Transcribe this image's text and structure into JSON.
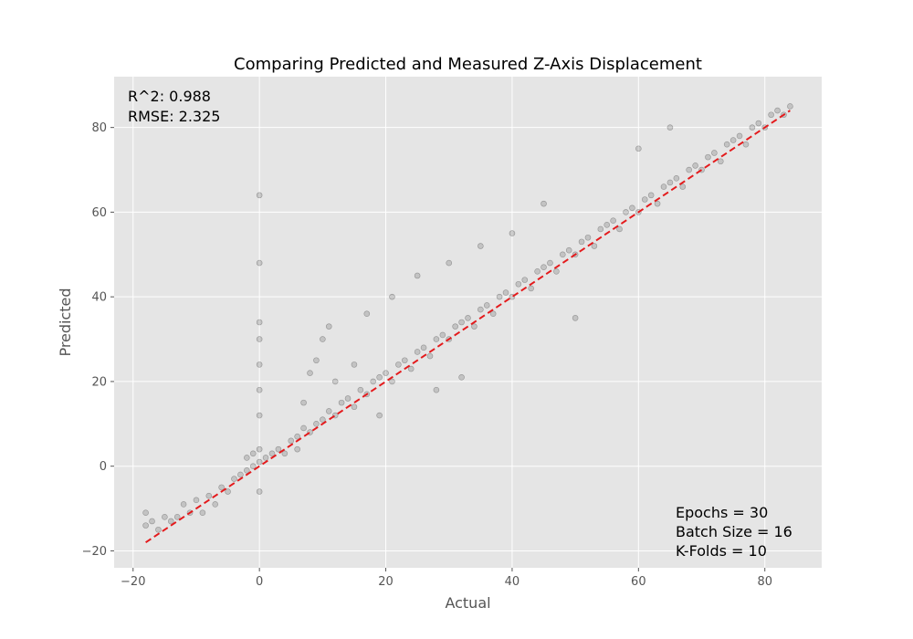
{
  "chart_data": {
    "type": "scatter",
    "title": "Comparing Predicted and Measured Z-Axis Displacement",
    "xlabel": "Actual",
    "ylabel": "Predicted",
    "xlim": [
      -23,
      89
    ],
    "ylim": [
      -24,
      92
    ],
    "xticks": [
      -20,
      0,
      20,
      40,
      60,
      80
    ],
    "yticks": [
      -20,
      0,
      20,
      40,
      60,
      80
    ],
    "x_tick_labels": [
      "−20",
      "0",
      "20",
      "40",
      "60",
      "80"
    ],
    "y_tick_labels": [
      "−20",
      "0",
      "20",
      "40",
      "60",
      "80"
    ],
    "grid": true,
    "point_color": "#000000",
    "point_opacity": 0.15,
    "plot_background": "#e5e5e5",
    "reference_line": {
      "from": [
        -18,
        -18
      ],
      "to": [
        84,
        84
      ],
      "color": "#e41a1c",
      "style": "dashed"
    },
    "metrics": [
      "R^2: 0.988",
      "RMSE: 2.325"
    ],
    "settings": [
      "Epochs = 30",
      "Batch Size = 16",
      "K-Folds = 10"
    ],
    "series": [
      {
        "values": [
          [
            -18,
            -14
          ],
          [
            -18,
            -11
          ],
          [
            -17,
            -13
          ],
          [
            -16,
            -15
          ],
          [
            -15,
            -12
          ],
          [
            -14,
            -13
          ],
          [
            -13,
            -12
          ],
          [
            -12,
            -9
          ],
          [
            -11,
            -11
          ],
          [
            -10,
            -8
          ],
          [
            -9,
            -11
          ],
          [
            -8,
            -7
          ],
          [
            -7,
            -9
          ],
          [
            -6,
            -5
          ],
          [
            -5,
            -6
          ],
          [
            -4,
            -3
          ],
          [
            -3,
            -2
          ],
          [
            -2,
            -1
          ],
          [
            -2,
            2
          ],
          [
            -1,
            0
          ],
          [
            -1,
            3
          ],
          [
            0,
            1
          ],
          [
            0,
            4
          ],
          [
            0,
            64
          ],
          [
            0,
            48
          ],
          [
            0,
            34
          ],
          [
            0,
            30
          ],
          [
            0,
            24
          ],
          [
            0,
            18
          ],
          [
            0,
            12
          ],
          [
            0,
            -6
          ],
          [
            1,
            2
          ],
          [
            2,
            3
          ],
          [
            3,
            4
          ],
          [
            4,
            3
          ],
          [
            5,
            6
          ],
          [
            6,
            7
          ],
          [
            6,
            4
          ],
          [
            7,
            9
          ],
          [
            7,
            15
          ],
          [
            8,
            8
          ],
          [
            8,
            22
          ],
          [
            9,
            10
          ],
          [
            9,
            25
          ],
          [
            10,
            11
          ],
          [
            10,
            30
          ],
          [
            11,
            13
          ],
          [
            11,
            33
          ],
          [
            12,
            12
          ],
          [
            12,
            20
          ],
          [
            13,
            15
          ],
          [
            14,
            16
          ],
          [
            15,
            14
          ],
          [
            15,
            24
          ],
          [
            16,
            18
          ],
          [
            17,
            17
          ],
          [
            17,
            36
          ],
          [
            18,
            20
          ],
          [
            19,
            21
          ],
          [
            19,
            12
          ],
          [
            20,
            22
          ],
          [
            21,
            20
          ],
          [
            21,
            40
          ],
          [
            22,
            24
          ],
          [
            23,
            25
          ],
          [
            24,
            23
          ],
          [
            25,
            27
          ],
          [
            25,
            45
          ],
          [
            26,
            28
          ],
          [
            27,
            26
          ],
          [
            28,
            30
          ],
          [
            28,
            18
          ],
          [
            29,
            31
          ],
          [
            30,
            30
          ],
          [
            30,
            48
          ],
          [
            31,
            33
          ],
          [
            32,
            34
          ],
          [
            32,
            21
          ],
          [
            33,
            35
          ],
          [
            34,
            33
          ],
          [
            35,
            37
          ],
          [
            35,
            52
          ],
          [
            36,
            38
          ],
          [
            37,
            36
          ],
          [
            38,
            40
          ],
          [
            39,
            41
          ],
          [
            40,
            40
          ],
          [
            40,
            55
          ],
          [
            41,
            43
          ],
          [
            42,
            44
          ],
          [
            43,
            42
          ],
          [
            44,
            46
          ],
          [
            45,
            47
          ],
          [
            45,
            62
          ],
          [
            46,
            48
          ],
          [
            47,
            46
          ],
          [
            48,
            50
          ],
          [
            49,
            51
          ],
          [
            50,
            50
          ],
          [
            50,
            35
          ],
          [
            51,
            53
          ],
          [
            52,
            54
          ],
          [
            53,
            52
          ],
          [
            54,
            56
          ],
          [
            55,
            57
          ],
          [
            56,
            58
          ],
          [
            57,
            56
          ],
          [
            58,
            60
          ],
          [
            59,
            61
          ],
          [
            60,
            60
          ],
          [
            60,
            75
          ],
          [
            61,
            63
          ],
          [
            62,
            64
          ],
          [
            63,
            62
          ],
          [
            64,
            66
          ],
          [
            65,
            67
          ],
          [
            65,
            80
          ],
          [
            66,
            68
          ],
          [
            67,
            66
          ],
          [
            68,
            70
          ],
          [
            69,
            71
          ],
          [
            70,
            70
          ],
          [
            71,
            73
          ],
          [
            72,
            74
          ],
          [
            73,
            72
          ],
          [
            74,
            76
          ],
          [
            75,
            77
          ],
          [
            76,
            78
          ],
          [
            77,
            76
          ],
          [
            78,
            80
          ],
          [
            79,
            81
          ],
          [
            80,
            80
          ],
          [
            81,
            83
          ],
          [
            82,
            84
          ],
          [
            83,
            83
          ],
          [
            84,
            85
          ]
        ]
      }
    ]
  }
}
